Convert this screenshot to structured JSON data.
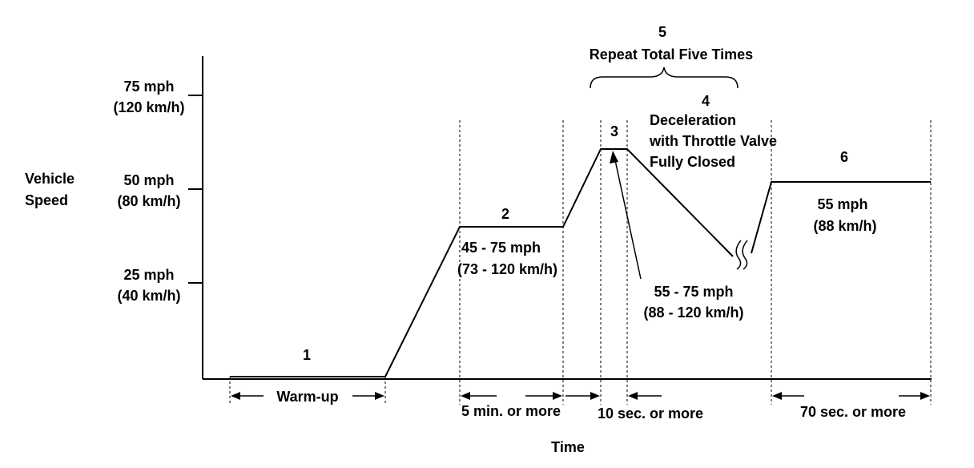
{
  "axes": {
    "y_title_line1": "Vehicle",
    "y_title_line2": "Speed",
    "x_title": "Time",
    "ticks": [
      {
        "speed_mph": "75 mph",
        "speed_kmh": "(120 km/h)"
      },
      {
        "speed_mph": "50 mph",
        "speed_kmh": "(80 km/h)"
      },
      {
        "speed_mph": "25 mph",
        "speed_kmh": "(40 km/h)"
      }
    ]
  },
  "steps": {
    "step1": {
      "number": "1",
      "duration": "Warm-up"
    },
    "step2": {
      "number": "2",
      "speed_line1": "45 - 75 mph",
      "speed_line2": "(73 - 120 km/h)",
      "duration": "5 min. or more"
    },
    "step3": {
      "number": "3",
      "speed_line1": "55 - 75 mph",
      "speed_line2": "(88 - 120 km/h)",
      "duration": "10 sec. or more"
    },
    "step4": {
      "number": "4",
      "label_line1": "Deceleration",
      "label_line2": "with Throttle Valve",
      "label_line3": "Fully Closed"
    },
    "step5": {
      "number": "5",
      "label": "Repeat Total Five Times"
    },
    "step6": {
      "number": "6",
      "speed_line1": "55 mph",
      "speed_line2": "(88 km/h)",
      "duration": "70 sec. or more"
    }
  }
}
